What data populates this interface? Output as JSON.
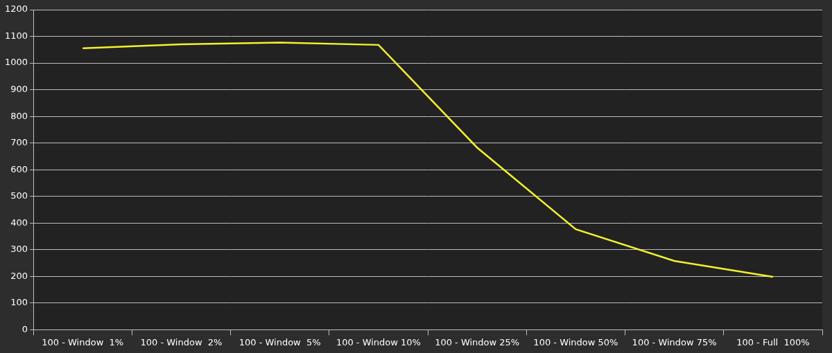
{
  "chart_data": {
    "type": "line",
    "categories": [
      "100 - Window  1%",
      "100 - Window  2%",
      "100 - Window  5%",
      "100 - Window 10%",
      "100 - Window 25%",
      "100 - Window 50%",
      "100 - Window 75%",
      "100 - Full  100%"
    ],
    "values": [
      1055,
      1070,
      1077,
      1068,
      683,
      377,
      258,
      198
    ],
    "color": "#f2f22e",
    "marker": "none",
    "ylim": [
      0,
      1200
    ],
    "yticks": [
      0,
      100,
      200,
      300,
      400,
      500,
      600,
      700,
      800,
      900,
      1000,
      1100,
      1200
    ],
    "grid": true
  }
}
